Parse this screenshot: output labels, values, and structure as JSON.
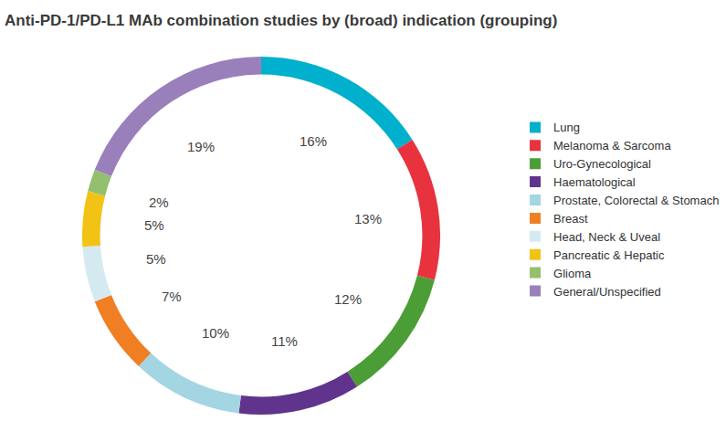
{
  "chart_data": {
    "type": "pie",
    "title": "Anti-PD-1/PD-L1 MAb combination studies by (broad) indication (grouping)",
    "categories": [
      "Lung",
      "Melanoma & Sarcoma",
      "Uro-Gynecological",
      "Haematological",
      "Prostate, Colorectal & Stomach",
      "Breast",
      "Head, Neck & Uveal",
      "Pancreatic & Hepatic",
      "Glioma",
      "General/Unspecified"
    ],
    "values": [
      16,
      13,
      12,
      11,
      10,
      7,
      5,
      5,
      2,
      19
    ],
    "value_labels": [
      "16%",
      "13%",
      "12%",
      "11%",
      "10%",
      "7%",
      "5%",
      "5%",
      "2%",
      "19%"
    ],
    "colors": [
      "#00b0cc",
      "#e8333f",
      "#4a9e35",
      "#60338c",
      "#a3d5e3",
      "#f07f24",
      "#d4eaf0",
      "#f2c315",
      "#93bf6e",
      "#9a80bb"
    ],
    "data_labels": true,
    "legend": "right"
  }
}
